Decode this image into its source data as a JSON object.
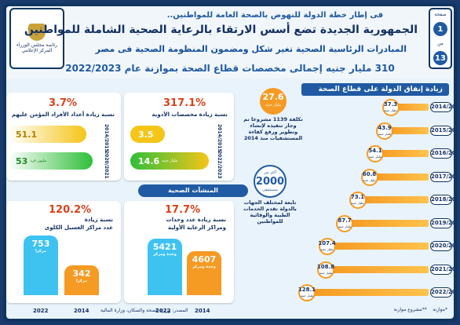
{
  "header": {
    "kicker": "فى إطار خطة الدولة للنهوض بالصحة العامة للمواطنين..",
    "title": "الجمهورية الجديدة تضع أسس الارتقاء بالرعاية الصحية الشاملة للمواطنين",
    "subtitle": "المبادرات الرئاسية الصحية تغير شكل ومضمون المنظومة الصحية فى مصر",
    "headline": "310 مليار جنيه إجمالى مخصصات قطاع الصحة بموازنة عام 2022/2023",
    "logo_text": "رئاسة مجلس الوزراء المركز الإعلامي",
    "page_label": "صفحة",
    "page_number": "1",
    "page_of": "من",
    "page_total": "13"
  },
  "right_panel": {
    "title": "زيادة إنفاق الدولة على قطاع الصحة",
    "unit": "مليار جنيه",
    "rows": [
      {
        "year": "2014/2015",
        "value": "37.3",
        "frac": 0.29
      },
      {
        "year": "2015/2016",
        "value": "43.9",
        "frac": 0.34
      },
      {
        "year": "2016/2017",
        "value": "54.1",
        "frac": 0.42
      },
      {
        "year": "2017/2018",
        "value": "60.8",
        "frac": 0.47
      },
      {
        "year": "2018/2019",
        "value": "73.1",
        "frac": 0.57
      },
      {
        "year": "2019/2020",
        "value": "87.7",
        "frac": 0.68
      },
      {
        "year": "2020/2021",
        "value": "107.4",
        "frac": 0.83
      },
      {
        "year": "2021/2022",
        "value": "108.8",
        "frac": 0.84
      },
      {
        "year": "2022/2023*",
        "value": "128.1",
        "frac": 1.0
      }
    ],
    "legend_budget": "*موازنة",
    "legend_project": "**مشروع موازنة"
  },
  "callouts": {
    "cost_value": "27.6",
    "cost_unit": "مليار جنيه",
    "cost_text": "تكلفة 1139 مشروعا تم وجار تنفيذه لإنشاء وتطوير ورفع كفاءة المستشفيات منذ 2014",
    "hosp_prefix": "أكثر من",
    "hosp_value": "2000",
    "hosp_unit": "مستشفى",
    "hosp_text": "تابعة لمختلف الجهات بالدولة تقدم الخدمات الطبية والوقائية للمواطنين"
  },
  "card_drugs": {
    "pct": "317.1%",
    "caption": "نسبة زيادة مخصصات الأدوية",
    "old_year": "2014/2015",
    "old_value": "3.5",
    "new_year": "2022/2023",
    "new_value": "14.6",
    "unit": "مليار جنيه"
  },
  "card_insured": {
    "pct": "3.7%",
    "caption": "نسبة زيادة أعداد الأفراد المؤمن عليهم",
    "old_year": "2014/2015",
    "old_value": "51.1",
    "new_year": "2020/2021",
    "new_value": "53",
    "unit": "مليون فرد"
  },
  "section_title": "المنشآت الصحية",
  "card_units": {
    "pct": "17.7%",
    "caption1": "نسبة زيادة عدد وحدات",
    "caption2": "ومراكز الرعاية الأولية",
    "old_value": "4607",
    "new_value": "5421",
    "unit": "وحدة ومركز",
    "old_year": "2014",
    "new_year": "2022"
  },
  "card_dialysis": {
    "pct": "120.2%",
    "caption1": "نسبة زيادة",
    "caption2": "عدد مراكز الغسيل الكلوى",
    "old_value": "342",
    "new_value": "753",
    "unit": "مركزا",
    "old_year": "2014",
    "new_year": "2022"
  },
  "source": "المصدر: وزارة الصحة والسكان، وزارة المالية",
  "colors": {
    "navy": "#1f5aa3",
    "orange": "#f59a23",
    "green": "#2fbf3a",
    "yellow": "#f5c518",
    "cyan": "#3ec3f0",
    "red": "#d9421b"
  }
}
